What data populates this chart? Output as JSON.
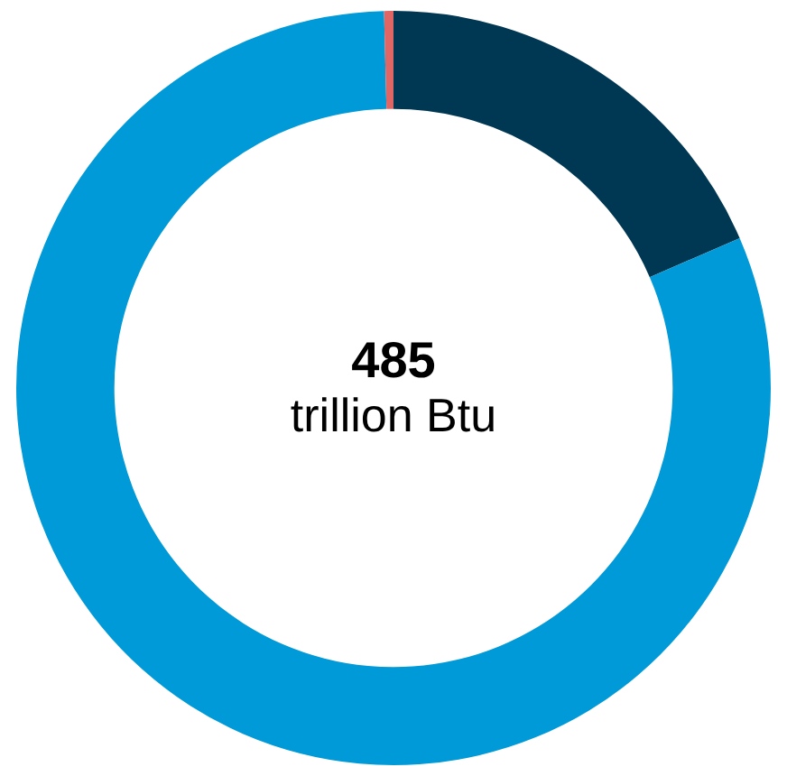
{
  "chart_data": {
    "type": "donut",
    "categories": [
      null,
      null,
      null
    ],
    "values": [
      18.5,
      81.1,
      0.4
    ],
    "colors": [
      "#003853",
      "#009ad8",
      "#e06666"
    ],
    "annotations": [
      "485",
      "trillion Btu"
    ]
  }
}
